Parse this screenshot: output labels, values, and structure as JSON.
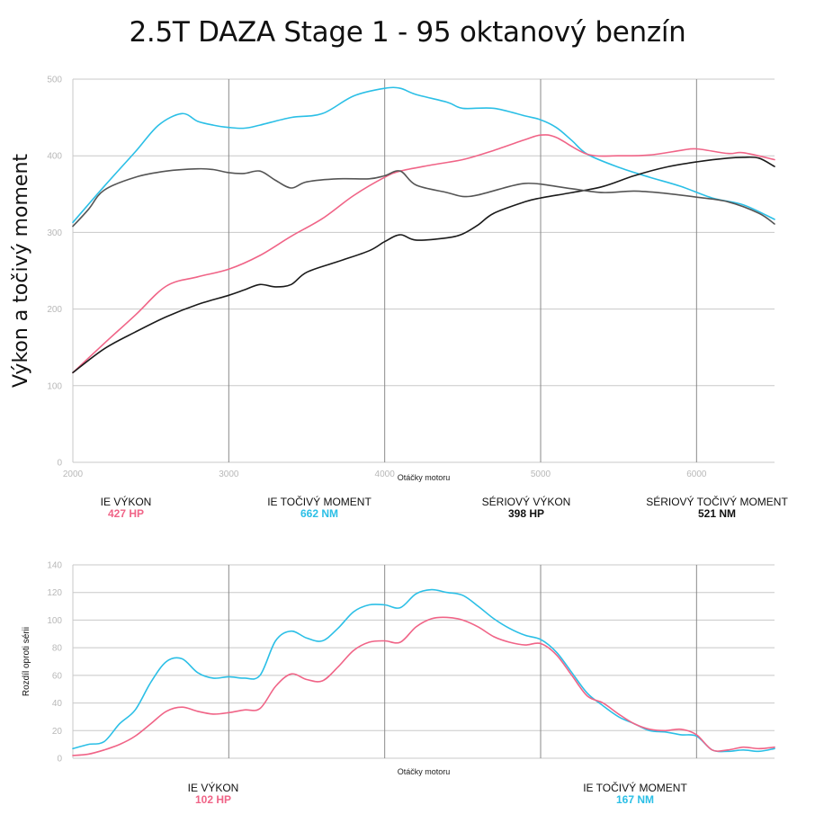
{
  "title": "2.5T DAZA Stage 1 - 95 oktanový benzín",
  "colors": {
    "ie_power": "#f06487",
    "ie_torque": "#2bbfe6",
    "stock_power": "#1a1a1a",
    "stock_torque": "#555555",
    "grid": "#c8c8c8",
    "grid_major": "#8a8a8a"
  },
  "legend_top": [
    {
      "label": "IE VÝKON",
      "value": "427 HP",
      "color": "#f06487"
    },
    {
      "label": "IE TOČIVÝ MOMENT",
      "value": "662 NM",
      "color": "#2bbfe6"
    },
    {
      "label": "SÉRIOVÝ VÝKON",
      "value": "398 HP",
      "color": "#111111"
    },
    {
      "label": "SÉRIOVÝ TOČIVÝ MOMENT",
      "value": "521 NM",
      "color": "#111111"
    }
  ],
  "legend_bottom": [
    {
      "label": "IE VÝKON",
      "value": "102 HP",
      "color": "#f06487"
    },
    {
      "label": "IE TOČIVÝ MOMENT",
      "value": "167 NM",
      "color": "#2bbfe6"
    }
  ],
  "chart_data": [
    {
      "type": "line",
      "ylabel": "Výkon a točivý moment",
      "xlabel": "Otáčky motoru",
      "xlim": [
        2000,
        6500
      ],
      "ylim": [
        0,
        500
      ],
      "x_ticks": [
        2000,
        3000,
        4000,
        5000,
        6000
      ],
      "y_ticks": [
        0,
        100,
        200,
        300,
        400,
        500
      ],
      "grid": true,
      "series": [
        {
          "name": "IE TOČIVÝ MOMENT",
          "color": "#2bbfe6",
          "x": [
            2000,
            2200,
            2400,
            2550,
            2700,
            2800,
            2900,
            3000,
            3100,
            3200,
            3400,
            3600,
            3800,
            4000,
            4100,
            4200,
            4400,
            4500,
            4700,
            4900,
            5000,
            5100,
            5200,
            5300,
            5500,
            5700,
            5900,
            6100,
            6300,
            6500
          ],
          "y": [
            313,
            360,
            405,
            440,
            455,
            445,
            440,
            437,
            436,
            440,
            450,
            455,
            478,
            488,
            488,
            480,
            470,
            462,
            462,
            452,
            447,
            437,
            420,
            402,
            385,
            372,
            360,
            345,
            336,
            317
          ]
        },
        {
          "name": "IE VÝKON",
          "color": "#f06487",
          "x": [
            2000,
            2200,
            2400,
            2600,
            2800,
            3000,
            3200,
            3400,
            3600,
            3800,
            4000,
            4100,
            4300,
            4500,
            4700,
            4900,
            5000,
            5100,
            5300,
            5500,
            5700,
            5900,
            6000,
            6200,
            6300,
            6500
          ],
          "y": [
            117,
            155,
            192,
            230,
            242,
            252,
            270,
            295,
            318,
            348,
            372,
            380,
            388,
            395,
            407,
            421,
            427,
            424,
            402,
            400,
            401,
            407,
            409,
            403,
            404,
            395
          ]
        },
        {
          "name": "SÉRIOVÝ VÝKON",
          "color": "#1a1a1a",
          "x": [
            2000,
            2200,
            2400,
            2600,
            2800,
            3000,
            3100,
            3200,
            3300,
            3400,
            3500,
            3700,
            3900,
            4000,
            4100,
            4200,
            4400,
            4500,
            4600,
            4700,
            4900,
            5000,
            5200,
            5400,
            5600,
            5800,
            6000,
            6200,
            6300,
            6400,
            6500
          ],
          "y": [
            117,
            148,
            170,
            190,
            206,
            218,
            225,
            232,
            229,
            232,
            248,
            262,
            276,
            288,
            297,
            290,
            293,
            298,
            310,
            325,
            340,
            345,
            352,
            360,
            374,
            385,
            392,
            397,
            398,
            397,
            386
          ]
        },
        {
          "name": "SÉRIOVÝ TOČIVÝ MOMENT",
          "color": "#555555",
          "x": [
            2000,
            2100,
            2200,
            2400,
            2600,
            2800,
            2900,
            3000,
            3100,
            3200,
            3300,
            3400,
            3500,
            3700,
            3900,
            4000,
            4100,
            4200,
            4400,
            4500,
            4600,
            4800,
            4900,
            5000,
            5200,
            5400,
            5600,
            5800,
            6000,
            6200,
            6400,
            6500
          ],
          "y": [
            308,
            330,
            355,
            372,
            380,
            383,
            382,
            378,
            377,
            380,
            368,
            358,
            366,
            370,
            370,
            374,
            380,
            362,
            352,
            347,
            349,
            360,
            364,
            363,
            357,
            352,
            354,
            351,
            346,
            340,
            325,
            311
          ]
        }
      ]
    },
    {
      "type": "line",
      "ylabel": "Rozdíl oproti sérii",
      "xlabel": "Otáčky motoru",
      "xlim": [
        2000,
        6500
      ],
      "ylim": [
        0,
        140
      ],
      "y_ticks": [
        0,
        20,
        40,
        60,
        80,
        100,
        120,
        140
      ],
      "grid": true,
      "series": [
        {
          "name": "IE TOČIVÝ MOMENT",
          "color": "#2bbfe6",
          "x": [
            2000,
            2100,
            2200,
            2300,
            2400,
            2500,
            2600,
            2700,
            2800,
            2900,
            3000,
            3100,
            3200,
            3300,
            3400,
            3500,
            3600,
            3700,
            3800,
            3900,
            4000,
            4100,
            4200,
            4300,
            4400,
            4500,
            4600,
            4700,
            4800,
            4900,
            5000,
            5100,
            5200,
            5300,
            5400,
            5500,
            5600,
            5700,
            5800,
            5900,
            6000,
            6100,
            6200,
            6300,
            6400,
            6500
          ],
          "y": [
            7,
            10,
            12,
            25,
            35,
            55,
            70,
            72,
            62,
            58,
            59,
            58,
            60,
            85,
            92,
            87,
            85,
            94,
            106,
            111,
            111,
            109,
            119,
            122,
            120,
            118,
            110,
            101,
            94,
            89,
            86,
            77,
            62,
            47,
            38,
            30,
            25,
            20,
            19,
            17,
            16,
            6,
            5,
            6,
            5,
            7
          ]
        },
        {
          "name": "IE VÝKON",
          "color": "#f06487",
          "x": [
            2000,
            2100,
            2200,
            2300,
            2400,
            2500,
            2600,
            2700,
            2800,
            2900,
            3000,
            3100,
            3200,
            3300,
            3400,
            3500,
            3600,
            3700,
            3800,
            3900,
            4000,
            4100,
            4200,
            4300,
            4400,
            4500,
            4600,
            4700,
            4800,
            4900,
            5000,
            5100,
            5200,
            5300,
            5400,
            5500,
            5600,
            5700,
            5800,
            5900,
            6000,
            6100,
            6200,
            6300,
            6400,
            6500
          ],
          "y": [
            2,
            3,
            6,
            10,
            16,
            25,
            34,
            37,
            34,
            32,
            33,
            35,
            36,
            52,
            61,
            57,
            56,
            66,
            78,
            84,
            85,
            84,
            95,
            101,
            102,
            100,
            95,
            88,
            84,
            82,
            83,
            75,
            60,
            45,
            40,
            32,
            25,
            21,
            20,
            21,
            17,
            6,
            6,
            8,
            7,
            8
          ]
        }
      ]
    }
  ]
}
